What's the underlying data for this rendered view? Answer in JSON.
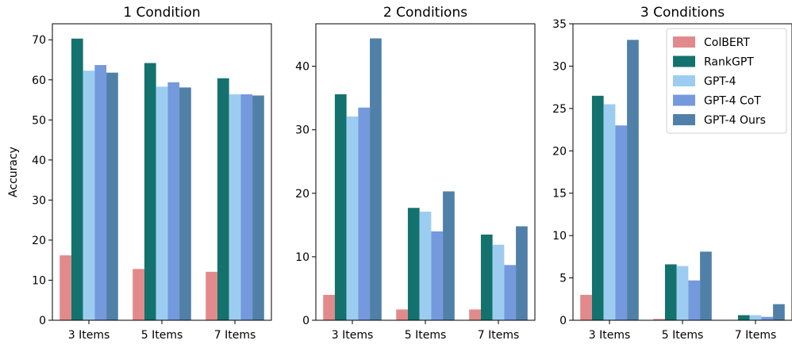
{
  "chart_data": [
    {
      "type": "bar",
      "title": "1 Condition",
      "xlabel": "",
      "ylabel": "Accuracy",
      "categories": [
        "3 Items",
        "5 Items",
        "7 Items"
      ],
      "ylim": [
        0,
        74
      ],
      "yticks": [
        0,
        10,
        20,
        30,
        40,
        50,
        60,
        70
      ],
      "grid": false,
      "legend": null,
      "series": [
        {
          "name": "ColBERT",
          "values": [
            16.2,
            12.8,
            12.1
          ]
        },
        {
          "name": "RankGPT",
          "values": [
            70.3,
            64.2,
            60.4
          ]
        },
        {
          "name": "GPT-4",
          "values": [
            62.3,
            58.3,
            56.4
          ]
        },
        {
          "name": "GPT-4 CoT",
          "values": [
            63.7,
            59.4,
            56.4
          ]
        },
        {
          "name": "GPT-4 Ours",
          "values": [
            61.8,
            58.1,
            56.1
          ]
        }
      ]
    },
    {
      "type": "bar",
      "title": "2 Conditions",
      "xlabel": "",
      "ylabel": "",
      "categories": [
        "3 Items",
        "5 Items",
        "7 Items"
      ],
      "ylim": [
        0,
        46.7
      ],
      "yticks": [
        0,
        10,
        20,
        30,
        40
      ],
      "grid": false,
      "legend": null,
      "series": [
        {
          "name": "ColBERT",
          "values": [
            4.0,
            1.7,
            1.7
          ]
        },
        {
          "name": "RankGPT",
          "values": [
            35.6,
            17.7,
            13.5
          ]
        },
        {
          "name": "GPT-4",
          "values": [
            32.1,
            17.1,
            11.9
          ]
        },
        {
          "name": "GPT-4 CoT",
          "values": [
            33.5,
            14.0,
            8.7
          ]
        },
        {
          "name": "GPT-4 Ours",
          "values": [
            44.4,
            20.3,
            14.8
          ]
        }
      ]
    },
    {
      "type": "bar",
      "title": "3 Conditions",
      "xlabel": "",
      "ylabel": "",
      "categories": [
        "3 Items",
        "5 Items",
        "7 Items"
      ],
      "ylim": [
        0,
        35
      ],
      "yticks": [
        0,
        5,
        10,
        15,
        20,
        25,
        30,
        35
      ],
      "grid": false,
      "legend": "top-right",
      "series": [
        {
          "name": "ColBERT",
          "values": [
            3.0,
            0.15,
            0.05
          ]
        },
        {
          "name": "RankGPT",
          "values": [
            26.5,
            6.6,
            0.6
          ]
        },
        {
          "name": "GPT-4",
          "values": [
            25.5,
            6.4,
            0.6
          ]
        },
        {
          "name": "GPT-4 CoT",
          "values": [
            23.0,
            4.7,
            0.4
          ]
        },
        {
          "name": "GPT-4 Ours",
          "values": [
            33.1,
            8.1,
            1.9
          ]
        }
      ]
    }
  ],
  "colors": {
    "series": [
      "#e28a8b",
      "#13726e",
      "#9ccdf0",
      "#7499dd",
      "#5080a8"
    ],
    "axis": "#000000"
  }
}
